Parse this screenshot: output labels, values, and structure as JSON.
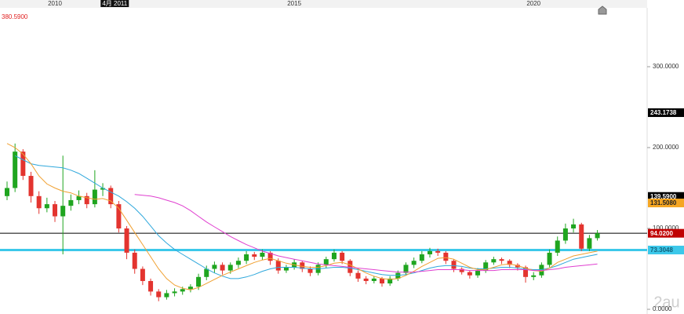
{
  "chart_data": {
    "type": "candlestick",
    "categories": [
      null,
      null,
      null,
      null,
      null,
      null,
      "2010",
      null,
      null,
      null,
      null,
      null,
      null,
      null,
      null,
      null,
      null,
      null,
      null,
      null,
      null,
      null,
      null,
      null,
      null,
      null,
      null,
      null,
      null,
      null,
      null,
      null,
      null,
      null,
      null,
      null,
      "2015",
      null,
      null,
      null,
      null,
      null,
      null,
      null,
      null,
      null,
      null,
      null,
      null,
      null,
      null,
      null,
      null,
      null,
      null,
      null,
      null,
      null,
      null,
      null,
      null,
      null,
      null,
      null,
      null,
      null,
      "2020",
      null,
      null,
      null,
      null,
      null,
      null,
      null,
      null
    ],
    "open": [
      140,
      150,
      195,
      165,
      140,
      125,
      130,
      115,
      128,
      135,
      140,
      130,
      148,
      150,
      130,
      100,
      70,
      50,
      35,
      22,
      15,
      20,
      22,
      25,
      28,
      40,
      50,
      55,
      48,
      55,
      60,
      68,
      65,
      70,
      60,
      48,
      52,
      58,
      50,
      45,
      55,
      62,
      70,
      60,
      45,
      38,
      35,
      38,
      32,
      38,
      45,
      55,
      60,
      68,
      72,
      70,
      60,
      50,
      46,
      42,
      48,
      58,
      62,
      60,
      55,
      52,
      40,
      42,
      55,
      70,
      85,
      100,
      105,
      75,
      88
    ],
    "high": [
      158,
      205,
      198,
      170,
      146,
      138,
      134,
      190,
      142,
      147,
      144,
      172,
      156,
      153,
      134,
      103,
      74,
      53,
      38,
      25,
      24,
      26,
      28,
      31,
      44,
      54,
      59,
      58,
      58,
      64,
      72,
      71,
      74,
      72,
      63,
      55,
      62,
      60,
      53,
      58,
      65,
      74,
      72,
      62,
      48,
      41,
      41,
      40,
      41,
      48,
      58,
      64,
      72,
      76,
      75,
      72,
      62,
      52,
      48,
      51,
      61,
      65,
      64,
      62,
      57,
      54,
      46,
      58,
      74,
      90,
      106,
      112,
      107,
      92,
      98
    ],
    "low": [
      135,
      145,
      160,
      132,
      118,
      120,
      108,
      68,
      122,
      130,
      125,
      126,
      140,
      125,
      95,
      62,
      44,
      30,
      17,
      10,
      12,
      16,
      18,
      21,
      24,
      36,
      45,
      43,
      44,
      51,
      56,
      61,
      61,
      55,
      44,
      45,
      49,
      46,
      41,
      42,
      51,
      59,
      56,
      41,
      34,
      31,
      32,
      28,
      29,
      35,
      42,
      51,
      57,
      64,
      66,
      56,
      46,
      43,
      38,
      39,
      45,
      55,
      56,
      51,
      48,
      33,
      36,
      39,
      52,
      66,
      81,
      95,
      72,
      72,
      85
    ],
    "close": [
      150,
      195,
      165,
      140,
      125,
      130,
      115,
      128,
      135,
      140,
      130,
      148,
      150,
      130,
      100,
      70,
      50,
      35,
      22,
      15,
      20,
      22,
      25,
      28,
      40,
      50,
      55,
      48,
      55,
      60,
      68,
      65,
      70,
      60,
      48,
      52,
      58,
      50,
      45,
      55,
      62,
      70,
      60,
      45,
      38,
      35,
      38,
      32,
      38,
      45,
      55,
      60,
      68,
      72,
      70,
      60,
      50,
      46,
      42,
      48,
      58,
      62,
      60,
      55,
      52,
      40,
      42,
      55,
      70,
      85,
      100,
      105,
      75,
      88,
      94.02
    ],
    "up_color": "#1fa51f",
    "down_color": "#e3342f",
    "overlays": [
      {
        "color": "#2fa8dc",
        "values": [
          null,
          190,
          185,
          180,
          178,
          177,
          176,
          175,
          172,
          168,
          162,
          156,
          150,
          145,
          140,
          133,
          125,
          115,
          103,
          91,
          82,
          74,
          68,
          62,
          56,
          50,
          45,
          41,
          38,
          38,
          40,
          43,
          47,
          50,
          52,
          52,
          52,
          51,
          50,
          50,
          51,
          52,
          52,
          51,
          49,
          47,
          45,
          43,
          42,
          42,
          43,
          45,
          48,
          51,
          53,
          54,
          54,
          53,
          51,
          50,
          50,
          51,
          52,
          52,
          51,
          50,
          49,
          49,
          51,
          54,
          58,
          62,
          64,
          66,
          68
        ]
      },
      {
        "color": "#f0a030",
        "values": [
          205,
          200,
          192,
          180,
          165,
          155,
          150,
          146,
          144,
          140,
          138,
          136,
          137,
          134,
          125,
          110,
          95,
          80,
          65,
          50,
          38,
          30,
          26,
          24,
          27,
          32,
          37,
          42,
          46,
          50,
          54,
          58,
          61,
          63,
          60,
          57,
          55,
          53,
          52,
          52,
          54,
          57,
          58,
          55,
          50,
          45,
          41,
          38,
          37,
          38,
          42,
          47,
          53,
          58,
          63,
          64,
          62,
          57,
          52,
          49,
          49,
          52,
          55,
          56,
          54,
          51,
          48,
          47,
          51,
          58,
          62,
          66,
          68,
          70,
          72
        ]
      },
      {
        "color": "#e040d0",
        "values": [
          null,
          null,
          null,
          null,
          null,
          null,
          null,
          null,
          null,
          null,
          null,
          null,
          null,
          null,
          null,
          null,
          142,
          141,
          140,
          138,
          135,
          132,
          128,
          122,
          115,
          108,
          102,
          96,
          90,
          85,
          80,
          76,
          72,
          69,
          66,
          64,
          62,
          60,
          58,
          56,
          55,
          54,
          53,
          52,
          51,
          50,
          49,
          48,
          47,
          46,
          46,
          46,
          47,
          48,
          49,
          49,
          49,
          49,
          48,
          48,
          48,
          48,
          49,
          49,
          49,
          49,
          48,
          48,
          49,
          50,
          52,
          53,
          54,
          55,
          56
        ]
      }
    ],
    "ylim": [
      -5.8,
      382.5
    ],
    "yticks": [
      {
        "value": 0,
        "label": "0.0000"
      },
      {
        "value": 100,
        "label": "100.0000"
      },
      {
        "value": 200,
        "label": "200.0000"
      },
      {
        "value": 300,
        "label": "300.0000"
      }
    ],
    "price_markers": [
      {
        "value": 243.1738,
        "label": "243.1738",
        "color": "#000000",
        "text_color": "#ffffff",
        "line": false
      },
      {
        "value": 139.59,
        "label": "139.5900",
        "color": "#000000",
        "text_color": "#ffffff",
        "line": false
      },
      {
        "value": 131.508,
        "label": "131.5080",
        "color": "#f5a623",
        "text_color": "#222222",
        "line": false
      },
      {
        "value": 94.02,
        "label": "94.0200",
        "color": "#c00000",
        "text_color": "#ffffff",
        "line": true,
        "line_color": "#000000",
        "line_style": "thin"
      },
      {
        "value": 73.3048,
        "label": "73.3048",
        "color": "#3cc8ea",
        "text_color": "#11607a",
        "line": true,
        "line_color": "#3cc8ea",
        "line_style": "thick"
      }
    ],
    "max_label": "380.5900",
    "cursor_label": "4月 2011",
    "watermark": "2au"
  }
}
